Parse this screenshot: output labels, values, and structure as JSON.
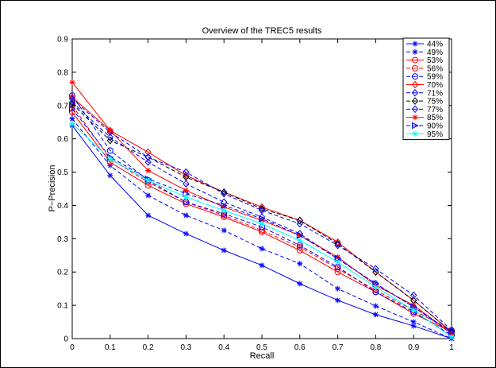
{
  "chart_data": {
    "type": "line",
    "title": "Overview of the TREC5 results",
    "xlabel": "Recall",
    "ylabel": "P−Precision",
    "xlim": [
      0,
      1
    ],
    "ylim": [
      0,
      0.9
    ],
    "x_ticks": [
      "0",
      "0.1",
      "0.2",
      "0.3",
      "0.4",
      "0.5",
      "0.6",
      "0.7",
      "0.8",
      "0.9",
      "1"
    ],
    "y_ticks": [
      "0",
      "0.1",
      "0.2",
      "0.3",
      "0.4",
      "0.5",
      "0.6",
      "0.7",
      "0.8",
      "0.9"
    ],
    "grid": false,
    "legend_position": "top-right",
    "x": [
      0,
      0.1,
      0.2,
      0.3,
      0.4,
      0.5,
      0.6,
      0.7,
      0.8,
      0.9,
      1
    ],
    "series": [
      {
        "name": "44%",
        "color": "#0000ff",
        "marker": "star",
        "dash": "solid",
        "values": [
          0.64,
          0.49,
          0.37,
          0.315,
          0.265,
          0.22,
          0.165,
          0.115,
          0.072,
          0.038,
          0.0
        ]
      },
      {
        "name": "49%",
        "color": "#0000ff",
        "marker": "star",
        "dash": "dashed",
        "values": [
          0.66,
          0.52,
          0.43,
          0.37,
          0.325,
          0.27,
          0.225,
          0.15,
          0.098,
          0.05,
          0.0
        ]
      },
      {
        "name": "53%",
        "color": "#ff0000",
        "marker": "circle",
        "dash": "solid",
        "values": [
          0.68,
          0.53,
          0.46,
          0.405,
          0.365,
          0.32,
          0.265,
          0.2,
          0.14,
          0.075,
          0.02
        ]
      },
      {
        "name": "56%",
        "color": "#ff0000",
        "marker": "circle",
        "dash": "dashed",
        "values": [
          0.7,
          0.54,
          0.47,
          0.41,
          0.37,
          0.325,
          0.275,
          0.21,
          0.145,
          0.085,
          0.025
        ]
      },
      {
        "name": "59%",
        "color": "#0000ff",
        "marker": "circle",
        "dash": "dashed",
        "values": [
          0.73,
          0.565,
          0.475,
          0.41,
          0.375,
          0.335,
          0.28,
          0.215,
          0.14,
          0.08,
          0.01
        ]
      },
      {
        "name": "70%",
        "color": "#ff0000",
        "marker": "diamond",
        "dash": "solid",
        "values": [
          0.725,
          0.625,
          0.56,
          0.49,
          0.44,
          0.395,
          0.355,
          0.29,
          0.2,
          0.115,
          0.02
        ]
      },
      {
        "name": "71%",
        "color": "#0000ff",
        "marker": "diamond",
        "dash": "dashed",
        "values": [
          0.71,
          0.605,
          0.53,
          0.465,
          0.41,
          0.365,
          0.315,
          0.24,
          0.165,
          0.095,
          0.015
        ]
      },
      {
        "name": "75%",
        "color": "#000000",
        "marker": "diamond",
        "dash": "dashed",
        "values": [
          0.705,
          0.595,
          0.545,
          0.485,
          0.44,
          0.39,
          0.355,
          0.285,
          0.2,
          0.115,
          0.02
        ]
      },
      {
        "name": "77%",
        "color": "#0000ff",
        "marker": "diamond",
        "dash": "dashed",
        "values": [
          0.72,
          0.62,
          0.545,
          0.5,
          0.435,
          0.385,
          0.345,
          0.28,
          0.21,
          0.13,
          0.025
        ]
      },
      {
        "name": "85%",
        "color": "#ff0000",
        "marker": "star",
        "dash": "solid",
        "values": [
          0.77,
          0.625,
          0.505,
          0.445,
          0.395,
          0.355,
          0.31,
          0.245,
          0.16,
          0.1,
          0.015
        ]
      },
      {
        "name": "90%",
        "color": "#0000ff",
        "marker": "triangle-right",
        "dash": "dashed",
        "values": [
          0.69,
          0.545,
          0.48,
          0.435,
          0.4,
          0.36,
          0.31,
          0.24,
          0.165,
          0.095,
          0.02
        ]
      },
      {
        "name": "95%",
        "color": "#00ffff",
        "marker": "star",
        "dash": "solid",
        "values": [
          0.645,
          0.54,
          0.475,
          0.425,
          0.385,
          0.345,
          0.295,
          0.23,
          0.155,
          0.085,
          0.005
        ]
      }
    ]
  }
}
